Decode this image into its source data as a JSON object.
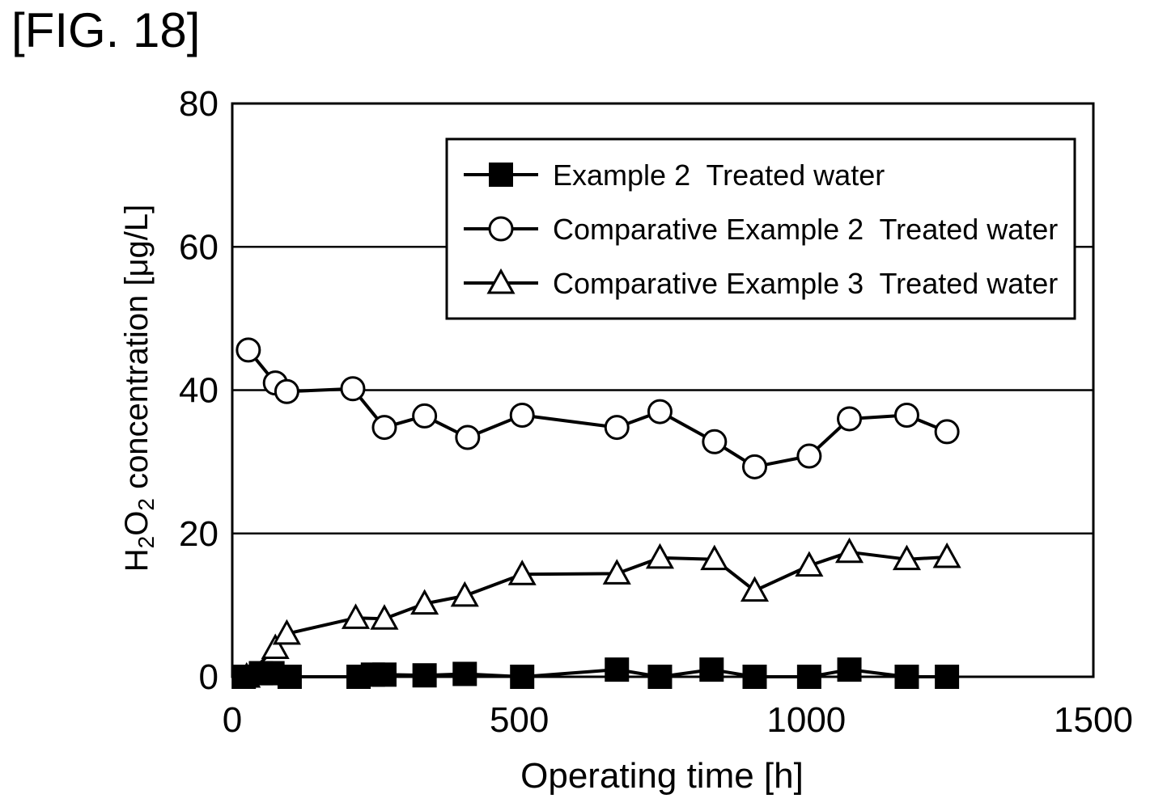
{
  "figure_label": "[FIG. 18]",
  "chart_data": {
    "type": "line",
    "title": "",
    "xlabel": "Operating time [h]",
    "ylabel_parts": [
      "H",
      "2",
      "O",
      "2",
      " concentration [μg/L]"
    ],
    "xlim": [
      0,
      1500
    ],
    "ylim": [
      0,
      80
    ],
    "xticks": [
      0,
      500,
      1000,
      1500
    ],
    "yticks": [
      0,
      20,
      40,
      60,
      80
    ],
    "grid": "horizontal",
    "legend_position": "top-right",
    "series": [
      {
        "name": "Example 2  Treated water",
        "marker": "square-filled",
        "points": [
          [
            20,
            0
          ],
          [
            50,
            0.5
          ],
          [
            70,
            0.5
          ],
          [
            100,
            0
          ],
          [
            220,
            0
          ],
          [
            245,
            0.3
          ],
          [
            265,
            0.3
          ],
          [
            335,
            0.2
          ],
          [
            405,
            0.4
          ],
          [
            505,
            0
          ],
          [
            670,
            1
          ],
          [
            745,
            0
          ],
          [
            835,
            1
          ],
          [
            910,
            0
          ],
          [
            1005,
            0
          ],
          [
            1075,
            1
          ],
          [
            1175,
            0
          ],
          [
            1245,
            0
          ]
        ]
      },
      {
        "name": "Comparative Example 2  Treated water",
        "marker": "circle-open",
        "points": [
          [
            28,
            45.6
          ],
          [
            75,
            41
          ],
          [
            95,
            39.8
          ],
          [
            210,
            40.2
          ],
          [
            265,
            34.8
          ],
          [
            335,
            36.4
          ],
          [
            410,
            33.4
          ],
          [
            505,
            36.5
          ],
          [
            670,
            34.8
          ],
          [
            745,
            37
          ],
          [
            840,
            32.8
          ],
          [
            910,
            29.3
          ],
          [
            1005,
            30.8
          ],
          [
            1075,
            36
          ],
          [
            1175,
            36.5
          ],
          [
            1245,
            34.2
          ]
        ]
      },
      {
        "name": "Comparative Example 3  Treated water",
        "marker": "triangle-open",
        "points": [
          [
            25,
            0
          ],
          [
            75,
            4
          ],
          [
            95,
            6
          ],
          [
            215,
            8.2
          ],
          [
            265,
            8.1
          ],
          [
            335,
            10.2
          ],
          [
            405,
            11.3
          ],
          [
            505,
            14.3
          ],
          [
            670,
            14.4
          ],
          [
            745,
            16.6
          ],
          [
            840,
            16.4
          ],
          [
            910,
            12
          ],
          [
            1005,
            15.5
          ],
          [
            1075,
            17.4
          ],
          [
            1175,
            16.4
          ],
          [
            1245,
            16.7
          ]
        ]
      }
    ]
  }
}
